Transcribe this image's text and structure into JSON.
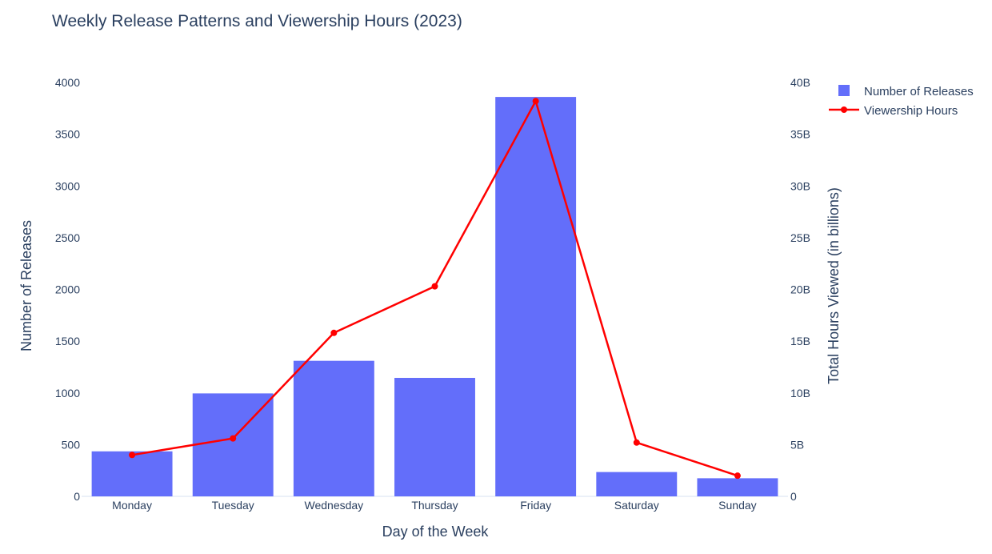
{
  "chart_data": {
    "type": "bar",
    "title": "Weekly Release Patterns and Viewership Hours (2023)",
    "xlabel": "Day of the Week",
    "ylabel": "Number of Releases",
    "y2label": "Total Hours Viewed (in billions)",
    "categories": [
      "Monday",
      "Tuesday",
      "Wednesday",
      "Thursday",
      "Friday",
      "Saturday",
      "Sunday"
    ],
    "ylim": [
      0,
      4000
    ],
    "y2lim": [
      0,
      40000000000
    ],
    "y_ticks": [
      "0",
      "500",
      "1000",
      "1500",
      "2000",
      "2500",
      "3000",
      "3500",
      "4000"
    ],
    "y_tick_values": [
      0,
      500,
      1000,
      1500,
      2000,
      2500,
      3000,
      3500,
      4000
    ],
    "y2_ticks": [
      "0",
      "5B",
      "10B",
      "15B",
      "20B",
      "25B",
      "30B",
      "35B",
      "40B"
    ],
    "y2_tick_values": [
      0,
      5000000000,
      10000000000,
      15000000000,
      20000000000,
      25000000000,
      30000000000,
      35000000000,
      40000000000
    ],
    "legend_position": "top-right",
    "grid": false,
    "series": [
      {
        "name": "Number of Releases",
        "type": "bar",
        "axis": "left",
        "color": "#636efa",
        "values": [
          435,
          995,
          1310,
          1145,
          3860,
          235,
          175
        ]
      },
      {
        "name": "Viewership Hours",
        "type": "line",
        "axis": "right",
        "color": "#ff0000",
        "values": [
          4000000000,
          5600000000,
          15800000000,
          20300000000,
          38200000000,
          5200000000,
          2000000000
        ]
      }
    ]
  }
}
